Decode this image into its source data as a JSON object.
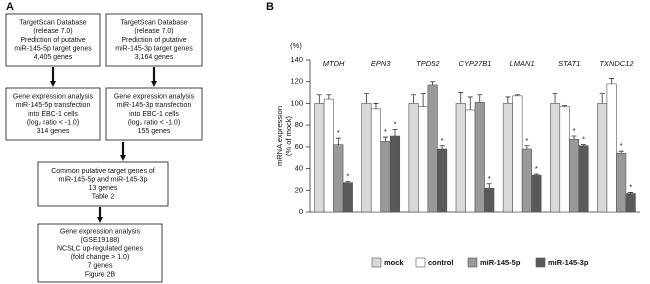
{
  "panels": [
    "A",
    "B"
  ],
  "flowchart": {
    "nodes": [
      {
        "lines": [
          "TargetScan Database",
          "(release 7.0)",
          "Prediction of putative",
          "miR-145-5p target genes",
          "4,405 genes"
        ]
      },
      {
        "lines": [
          "TargetScan Database",
          "(release 7.0)",
          "Prediction of putative",
          "miR-145-3p target genes",
          "3,164 genes"
        ]
      },
      {
        "lines": [
          "Gene expression analysis",
          "miR-145-5p transfection",
          "into EBC-1 cells",
          "(log₂ ratio < -1.0)",
          "314 genes"
        ]
      },
      {
        "lines": [
          "Gene expression analysis",
          "miR-145-3p transfection",
          "into EBC-1 cells",
          "(log₂ ratio < -1.0)",
          "155 genes"
        ]
      },
      {
        "lines": [
          "Common putative target genes of",
          "miR-145-5p and miR-145-3p",
          "13 genes",
          "Table 2"
        ]
      },
      {
        "lines": [
          "Gene expression analysis",
          "(GSE19188)",
          "NCSLC up-regulated genes",
          "(fold change > 1.0)",
          "7 genes",
          "Figure 2B"
        ]
      }
    ]
  },
  "chart_data": {
    "type": "bar",
    "y_unit": "(%)",
    "ylabel": [
      "mRNA expression",
      "(% of mock)"
    ],
    "categories": [
      "MTDH",
      "EPN3",
      "TPD52",
      "CYP27B1",
      "LMAN1",
      "STAT1",
      "TXNDC12"
    ],
    "ylim": [
      0,
      140
    ],
    "yticks": [
      0,
      20,
      40,
      60,
      80,
      100,
      120,
      140
    ],
    "series": [
      {
        "name": "mock",
        "color": "#d9d9d9",
        "values": [
          100,
          100,
          100,
          100,
          100,
          100,
          100
        ],
        "error": [
          8,
          9,
          8,
          10,
          6,
          9,
          9
        ],
        "significant": [
          null,
          null,
          null,
          null,
          null,
          null,
          null
        ]
      },
      {
        "name": "control",
        "color": "#ffffff",
        "values": [
          104,
          95,
          97,
          94,
          107,
          97,
          118
        ],
        "error": [
          4,
          5,
          12,
          12,
          1,
          1,
          5
        ],
        "significant": [
          null,
          null,
          null,
          null,
          null,
          null,
          null
        ]
      },
      {
        "name": "miR-145-5p",
        "color": "#999999",
        "values": [
          62,
          65,
          117,
          101,
          58,
          67,
          54
        ],
        "error": [
          6,
          4,
          3,
          7,
          3,
          3,
          2
        ],
        "significant": [
          "*",
          "*",
          null,
          null,
          "*",
          "*",
          "*"
        ]
      },
      {
        "name": "miR-145-3p",
        "color": "#595959",
        "values": [
          27,
          70,
          58,
          22,
          34,
          61,
          17
        ],
        "error": [
          1,
          6,
          3,
          4,
          1,
          1,
          1
        ],
        "significant": [
          "*",
          "*",
          "*",
          "*",
          "*",
          "*",
          "*"
        ]
      }
    ]
  }
}
